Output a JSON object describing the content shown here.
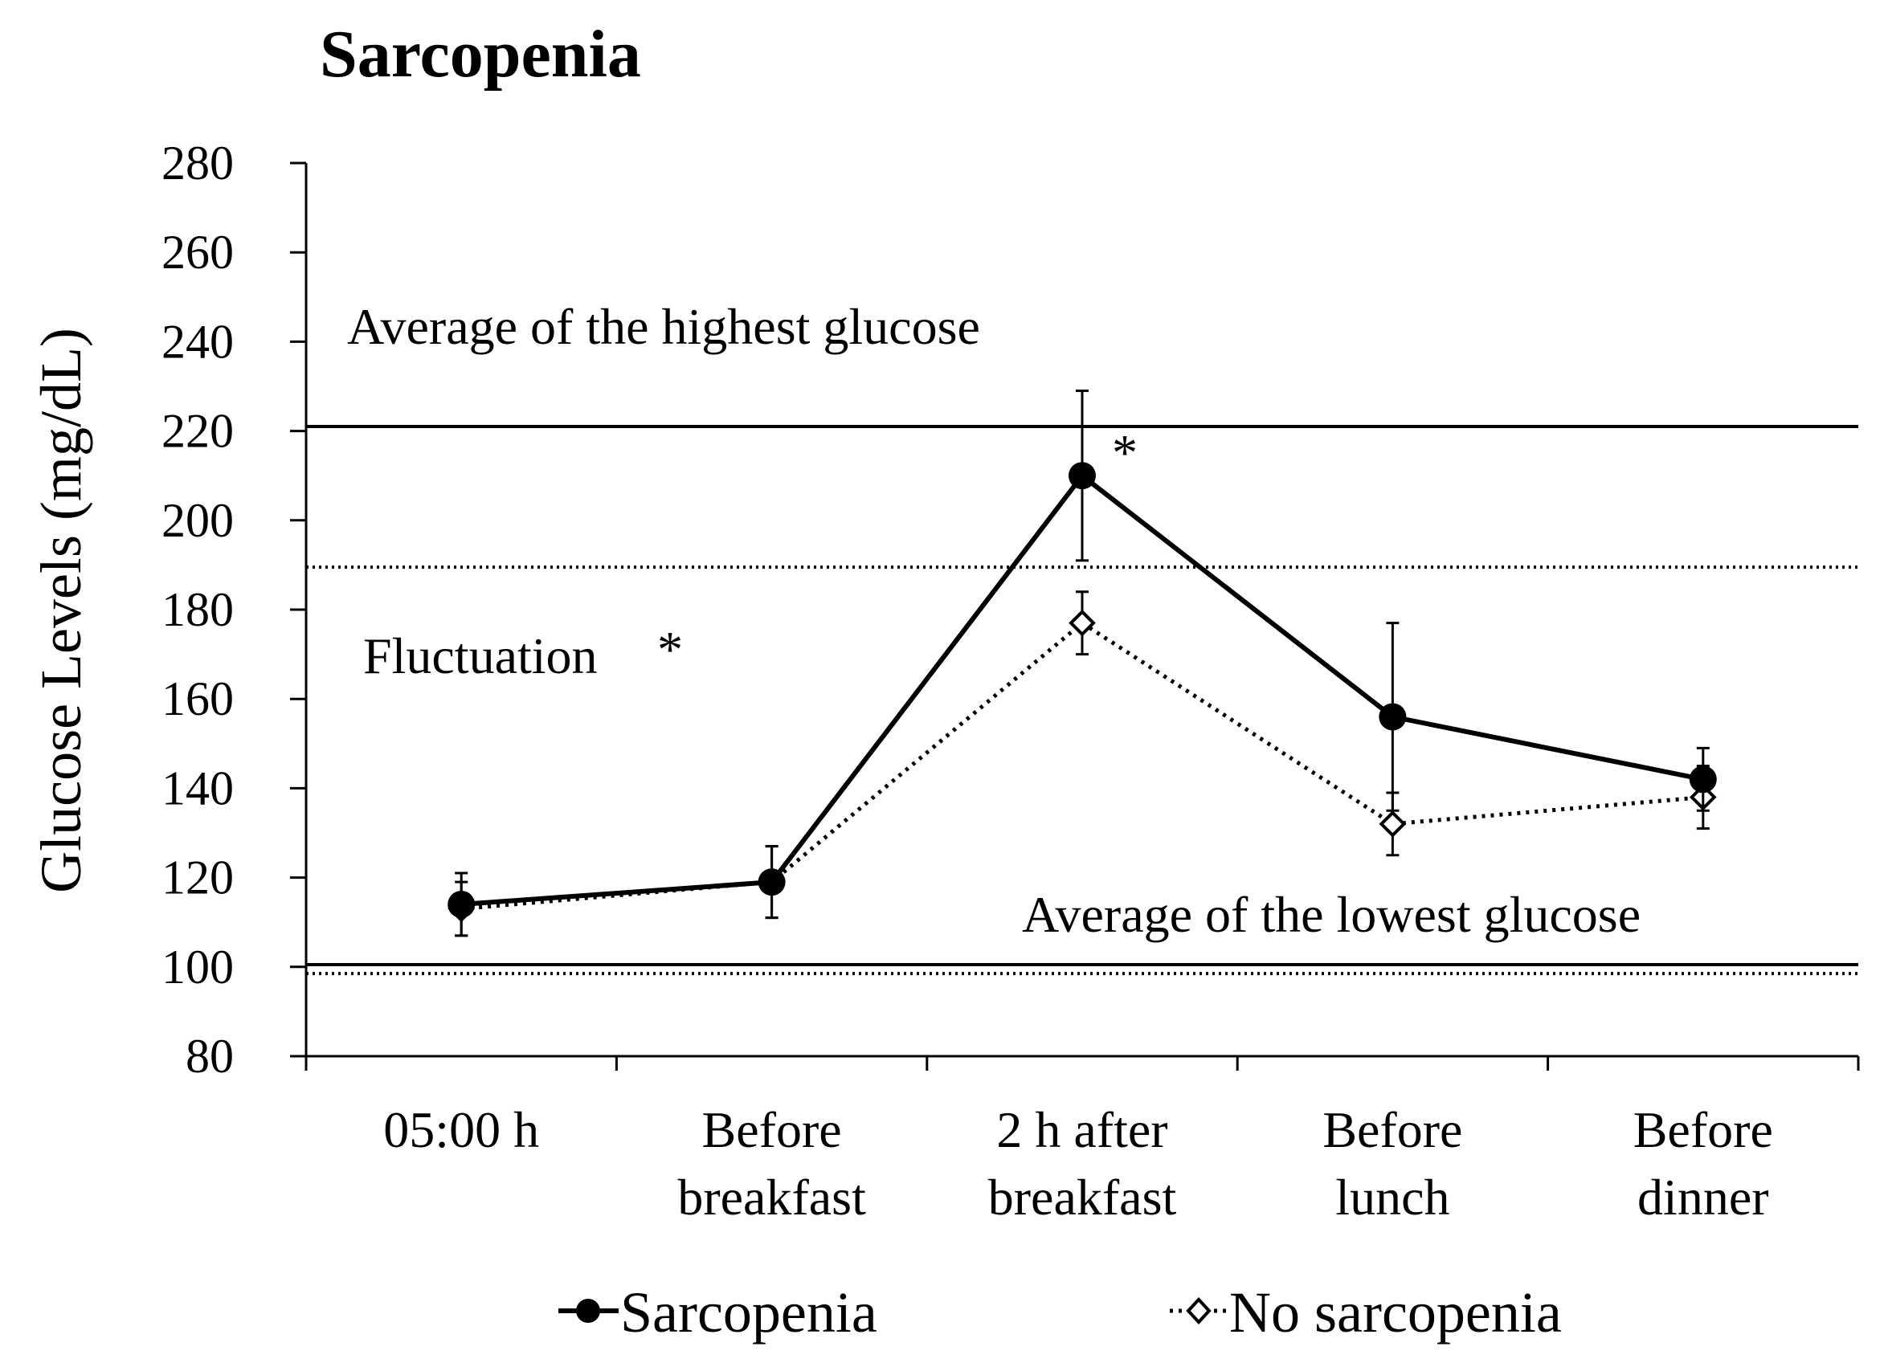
{
  "chart_data": {
    "type": "line",
    "title": "Sarcopenia",
    "xlabel": "",
    "ylabel": "Glucose Levels (mg/dL)",
    "ylim": [
      80,
      280
    ],
    "yticks": [
      80,
      100,
      120,
      140,
      160,
      180,
      200,
      220,
      240,
      260,
      280
    ],
    "categories": [
      [
        "05:00 h"
      ],
      [
        "Before",
        "breakfast"
      ],
      [
        "2 h after",
        "breakfast"
      ],
      [
        "Before",
        "lunch"
      ],
      [
        "Before",
        "dinner"
      ]
    ],
    "series": [
      {
        "name": "Sarcopenia",
        "style": "solid",
        "marker": "filled-circle",
        "values": [
          114,
          119,
          210,
          156,
          142
        ],
        "error": [
          7,
          8,
          19,
          21,
          7
        ]
      },
      {
        "name": "No sarcopenia",
        "style": "dotted",
        "marker": "open-diamond",
        "values": [
          113,
          119,
          177,
          132,
          138
        ],
        "error": [
          6,
          8,
          7,
          7,
          7
        ]
      }
    ],
    "reference_lines": [
      {
        "name": "highest-sarcopenia",
        "value": 221,
        "style": "solid"
      },
      {
        "name": "highest-no-sarcopenia",
        "value": 189.5,
        "style": "dotted"
      },
      {
        "name": "lowest-sarcopenia",
        "value": 100.5,
        "style": "solid"
      },
      {
        "name": "lowest-no-sarcopenia",
        "value": 98.5,
        "style": "dotted"
      }
    ],
    "annotations": {
      "highest": "Average of the highest glucose",
      "lowest": "Average of the lowest glucose",
      "fluctuation": "Fluctuation",
      "fluctuation_star": "*",
      "peak_star": "*"
    },
    "legend": {
      "position": "bottom",
      "items": [
        "Sarcopenia",
        "No sarcopenia"
      ]
    },
    "colors": {
      "line": "#000000",
      "background": "#ffffff"
    }
  }
}
